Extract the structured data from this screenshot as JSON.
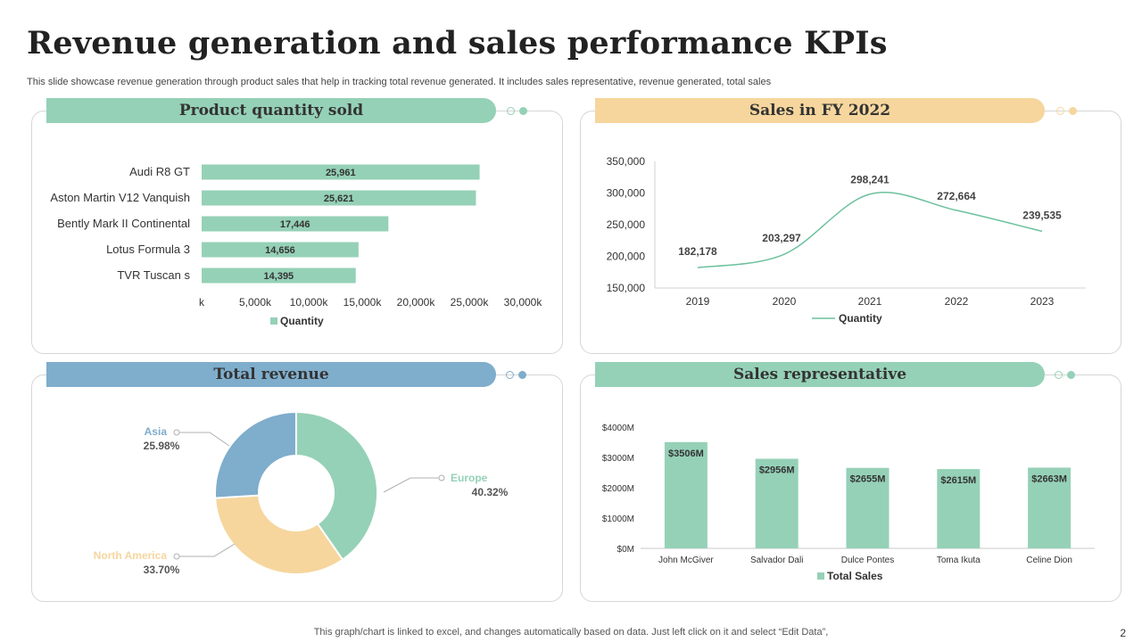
{
  "title": "Revenue generation and sales performance KPIs",
  "subtitle": "This slide showcase revenue generation through product sales that help in tracking total revenue generated. It includes sales representative, revenue generated, total sales",
  "footer": "This graph/chart is linked to excel,  and changes automatically based on data. Just left click on it and select “Edit Data”,",
  "page_number": "2",
  "colors": {
    "green": "#95d1b7",
    "blue": "#7fadcc",
    "yellow": "#f6d69d",
    "line": "#6cc19d"
  },
  "panels": {
    "product": "Product quantity sold",
    "fy": "Sales in FY 2022",
    "revenue": "Total revenue",
    "reps": "Sales representative"
  },
  "chart_data": [
    {
      "type": "bar",
      "orientation": "horizontal",
      "title": "Product quantity sold",
      "categories": [
        "Audi R8 GT",
        "Aston Martin V12 Vanquish",
        "Bently Mark II Continental",
        "Lotus Formula 3",
        "TVR Tuscan s"
      ],
      "values": [
        25961,
        25621,
        17446,
        14656,
        14395
      ],
      "value_labels": [
        "25,961",
        "25,621",
        "17,446",
        "14,656",
        "14,395"
      ],
      "xticks": [
        "k",
        "5,000k",
        "10,000k",
        "15,000k",
        "20,000k",
        "25,000k",
        "30,000k"
      ],
      "xlim": [
        0,
        30000
      ],
      "legend": "Quantity"
    },
    {
      "type": "line",
      "title": "Sales in FY 2022",
      "x": [
        "2019",
        "2020",
        "2021",
        "2022",
        "2023"
      ],
      "values": [
        182178,
        203297,
        298241,
        272664,
        239535
      ],
      "value_labels": [
        "182,178",
        "203,297",
        "298,241",
        "272,664",
        "239,535"
      ],
      "yticks": [
        "350,000",
        "300,000",
        "250,000",
        "200,000",
        "150,000"
      ],
      "ylim": [
        150000,
        350000
      ],
      "legend": "Quantity"
    },
    {
      "type": "pie",
      "title": "Total revenue",
      "slices": [
        {
          "name": "Europe",
          "value": 40.32,
          "label": "40.32%"
        },
        {
          "name": "North America",
          "value": 33.7,
          "label": "33.70%"
        },
        {
          "name": "Asia",
          "value": 25.98,
          "label": "25.98%"
        }
      ]
    },
    {
      "type": "bar",
      "title": "Sales representative",
      "categories": [
        "John McGiver",
        "Salvador Dali",
        "Dulce Pontes",
        "Toma Ikuta",
        "Celine Dion"
      ],
      "values": [
        3506,
        2956,
        2655,
        2615,
        2663
      ],
      "value_labels": [
        "$3506M",
        "$2956M",
        "$2655M",
        "$2615M",
        "$2663M"
      ],
      "yticks": [
        "$4000M",
        "$3000M",
        "$2000M",
        "$1000M",
        "$0M"
      ],
      "ylim": [
        0,
        4000
      ],
      "legend": "Total Sales"
    }
  ]
}
